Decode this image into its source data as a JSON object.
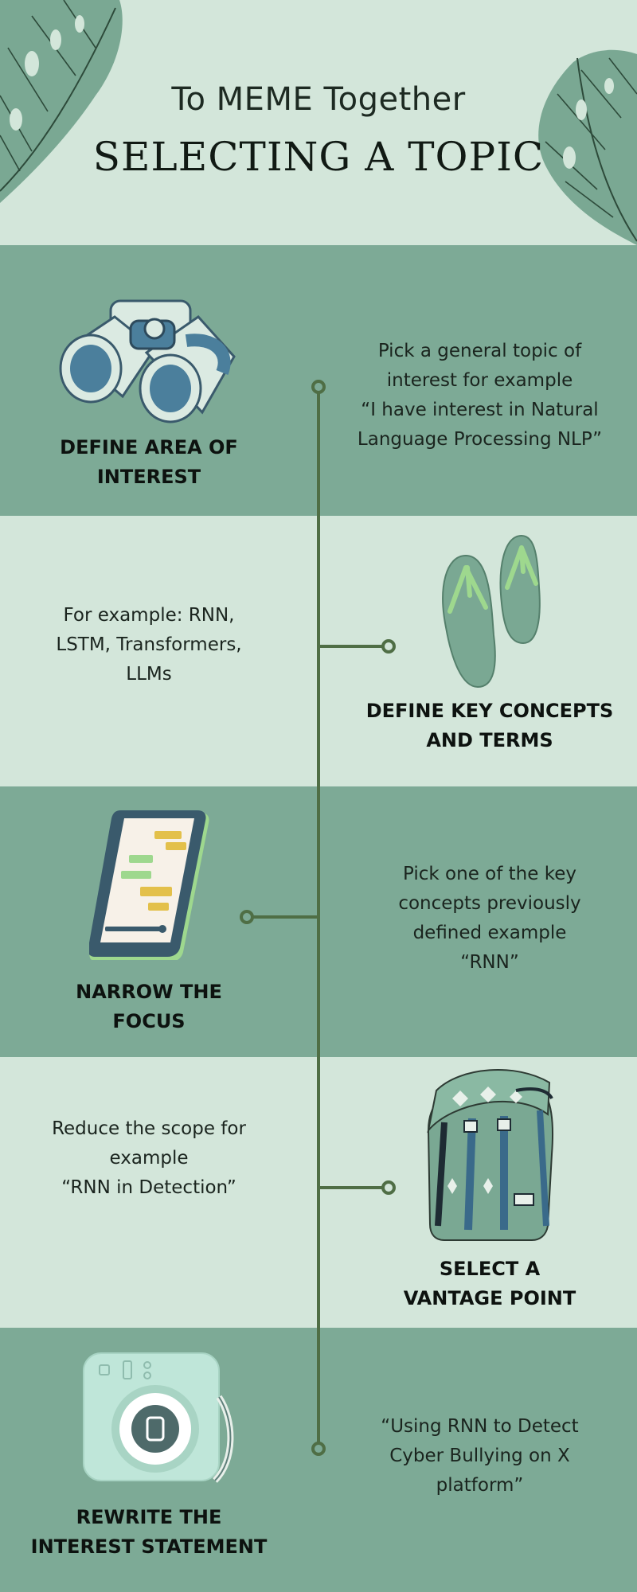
{
  "header": {
    "subtitle": "To MEME Together",
    "title": "SELECTING A TOPIC"
  },
  "steps": [
    {
      "label_line1": "DEFINE AREA OF",
      "label_line2": "INTEREST",
      "desc": [
        "Pick a general topic of",
        "interest for example",
        "“I have interest in Natural",
        "Language Processing NLP”"
      ],
      "icon": "binoculars-icon"
    },
    {
      "label_line1": "DEFINE KEY CONCEPTS",
      "label_line2": "AND TERMS",
      "desc": [
        "For example: RNN,",
        "LSTM, Transformers,",
        "LLMs"
      ],
      "icon": "flip-flops-icon"
    },
    {
      "label_line1": "NARROW THE",
      "label_line2": "FOCUS",
      "desc": [
        "Pick one of the key",
        "concepts previously",
        "defined example",
        "“RNN”"
      ],
      "icon": "smartphone-icon"
    },
    {
      "label_line1": "SELECT A",
      "label_line2": "VANTAGE POINT",
      "desc": [
        "Reduce the scope for",
        "example",
        "“RNN in Detection”"
      ],
      "icon": "backpack-icon"
    },
    {
      "label_line1": "REWRITE THE",
      "label_line2": "INTEREST STATEMENT",
      "desc": [
        "“Using RNN to Detect",
        "Cyber Bullying on X",
        "platform”"
      ],
      "icon": "instant-camera-icon"
    }
  ],
  "colors": {
    "dark_band": "#7daa96",
    "light_band": "#d3e6da",
    "timeline": "#4f6e45"
  }
}
